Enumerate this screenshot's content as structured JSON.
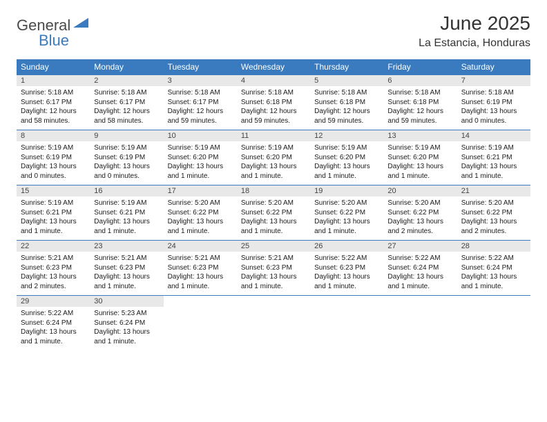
{
  "brand": {
    "part1": "General",
    "part2": "Blue"
  },
  "title": "June 2025",
  "location": "La Estancia, Honduras",
  "colors": {
    "header_bg": "#3a7bbf",
    "header_text": "#ffffff",
    "daynum_bg": "#e8e8e8",
    "row_border": "#3a7bbf",
    "text": "#1a1a1a",
    "logo_gray": "#4a4a4a",
    "logo_blue": "#3a7bbf"
  },
  "weekdays": [
    "Sunday",
    "Monday",
    "Tuesday",
    "Wednesday",
    "Thursday",
    "Friday",
    "Saturday"
  ],
  "days": [
    {
      "n": "1",
      "sunrise": "Sunrise: 5:18 AM",
      "sunset": "Sunset: 6:17 PM",
      "day1": "Daylight: 12 hours",
      "day2": "and 58 minutes."
    },
    {
      "n": "2",
      "sunrise": "Sunrise: 5:18 AM",
      "sunset": "Sunset: 6:17 PM",
      "day1": "Daylight: 12 hours",
      "day2": "and 58 minutes."
    },
    {
      "n": "3",
      "sunrise": "Sunrise: 5:18 AM",
      "sunset": "Sunset: 6:17 PM",
      "day1": "Daylight: 12 hours",
      "day2": "and 59 minutes."
    },
    {
      "n": "4",
      "sunrise": "Sunrise: 5:18 AM",
      "sunset": "Sunset: 6:18 PM",
      "day1": "Daylight: 12 hours",
      "day2": "and 59 minutes."
    },
    {
      "n": "5",
      "sunrise": "Sunrise: 5:18 AM",
      "sunset": "Sunset: 6:18 PM",
      "day1": "Daylight: 12 hours",
      "day2": "and 59 minutes."
    },
    {
      "n": "6",
      "sunrise": "Sunrise: 5:18 AM",
      "sunset": "Sunset: 6:18 PM",
      "day1": "Daylight: 12 hours",
      "day2": "and 59 minutes."
    },
    {
      "n": "7",
      "sunrise": "Sunrise: 5:18 AM",
      "sunset": "Sunset: 6:19 PM",
      "day1": "Daylight: 13 hours",
      "day2": "and 0 minutes."
    },
    {
      "n": "8",
      "sunrise": "Sunrise: 5:19 AM",
      "sunset": "Sunset: 6:19 PM",
      "day1": "Daylight: 13 hours",
      "day2": "and 0 minutes."
    },
    {
      "n": "9",
      "sunrise": "Sunrise: 5:19 AM",
      "sunset": "Sunset: 6:19 PM",
      "day1": "Daylight: 13 hours",
      "day2": "and 0 minutes."
    },
    {
      "n": "10",
      "sunrise": "Sunrise: 5:19 AM",
      "sunset": "Sunset: 6:20 PM",
      "day1": "Daylight: 13 hours",
      "day2": "and 1 minute."
    },
    {
      "n": "11",
      "sunrise": "Sunrise: 5:19 AM",
      "sunset": "Sunset: 6:20 PM",
      "day1": "Daylight: 13 hours",
      "day2": "and 1 minute."
    },
    {
      "n": "12",
      "sunrise": "Sunrise: 5:19 AM",
      "sunset": "Sunset: 6:20 PM",
      "day1": "Daylight: 13 hours",
      "day2": "and 1 minute."
    },
    {
      "n": "13",
      "sunrise": "Sunrise: 5:19 AM",
      "sunset": "Sunset: 6:20 PM",
      "day1": "Daylight: 13 hours",
      "day2": "and 1 minute."
    },
    {
      "n": "14",
      "sunrise": "Sunrise: 5:19 AM",
      "sunset": "Sunset: 6:21 PM",
      "day1": "Daylight: 13 hours",
      "day2": "and 1 minute."
    },
    {
      "n": "15",
      "sunrise": "Sunrise: 5:19 AM",
      "sunset": "Sunset: 6:21 PM",
      "day1": "Daylight: 13 hours",
      "day2": "and 1 minute."
    },
    {
      "n": "16",
      "sunrise": "Sunrise: 5:19 AM",
      "sunset": "Sunset: 6:21 PM",
      "day1": "Daylight: 13 hours",
      "day2": "and 1 minute."
    },
    {
      "n": "17",
      "sunrise": "Sunrise: 5:20 AM",
      "sunset": "Sunset: 6:22 PM",
      "day1": "Daylight: 13 hours",
      "day2": "and 1 minute."
    },
    {
      "n": "18",
      "sunrise": "Sunrise: 5:20 AM",
      "sunset": "Sunset: 6:22 PM",
      "day1": "Daylight: 13 hours",
      "day2": "and 1 minute."
    },
    {
      "n": "19",
      "sunrise": "Sunrise: 5:20 AM",
      "sunset": "Sunset: 6:22 PM",
      "day1": "Daylight: 13 hours",
      "day2": "and 1 minute."
    },
    {
      "n": "20",
      "sunrise": "Sunrise: 5:20 AM",
      "sunset": "Sunset: 6:22 PM",
      "day1": "Daylight: 13 hours",
      "day2": "and 2 minutes."
    },
    {
      "n": "21",
      "sunrise": "Sunrise: 5:20 AM",
      "sunset": "Sunset: 6:22 PM",
      "day1": "Daylight: 13 hours",
      "day2": "and 2 minutes."
    },
    {
      "n": "22",
      "sunrise": "Sunrise: 5:21 AM",
      "sunset": "Sunset: 6:23 PM",
      "day1": "Daylight: 13 hours",
      "day2": "and 2 minutes."
    },
    {
      "n": "23",
      "sunrise": "Sunrise: 5:21 AM",
      "sunset": "Sunset: 6:23 PM",
      "day1": "Daylight: 13 hours",
      "day2": "and 1 minute."
    },
    {
      "n": "24",
      "sunrise": "Sunrise: 5:21 AM",
      "sunset": "Sunset: 6:23 PM",
      "day1": "Daylight: 13 hours",
      "day2": "and 1 minute."
    },
    {
      "n": "25",
      "sunrise": "Sunrise: 5:21 AM",
      "sunset": "Sunset: 6:23 PM",
      "day1": "Daylight: 13 hours",
      "day2": "and 1 minute."
    },
    {
      "n": "26",
      "sunrise": "Sunrise: 5:22 AM",
      "sunset": "Sunset: 6:23 PM",
      "day1": "Daylight: 13 hours",
      "day2": "and 1 minute."
    },
    {
      "n": "27",
      "sunrise": "Sunrise: 5:22 AM",
      "sunset": "Sunset: 6:24 PM",
      "day1": "Daylight: 13 hours",
      "day2": "and 1 minute."
    },
    {
      "n": "28",
      "sunrise": "Sunrise: 5:22 AM",
      "sunset": "Sunset: 6:24 PM",
      "day1": "Daylight: 13 hours",
      "day2": "and 1 minute."
    },
    {
      "n": "29",
      "sunrise": "Sunrise: 5:22 AM",
      "sunset": "Sunset: 6:24 PM",
      "day1": "Daylight: 13 hours",
      "day2": "and 1 minute."
    },
    {
      "n": "30",
      "sunrise": "Sunrise: 5:23 AM",
      "sunset": "Sunset: 6:24 PM",
      "day1": "Daylight: 13 hours",
      "day2": "and 1 minute."
    }
  ]
}
